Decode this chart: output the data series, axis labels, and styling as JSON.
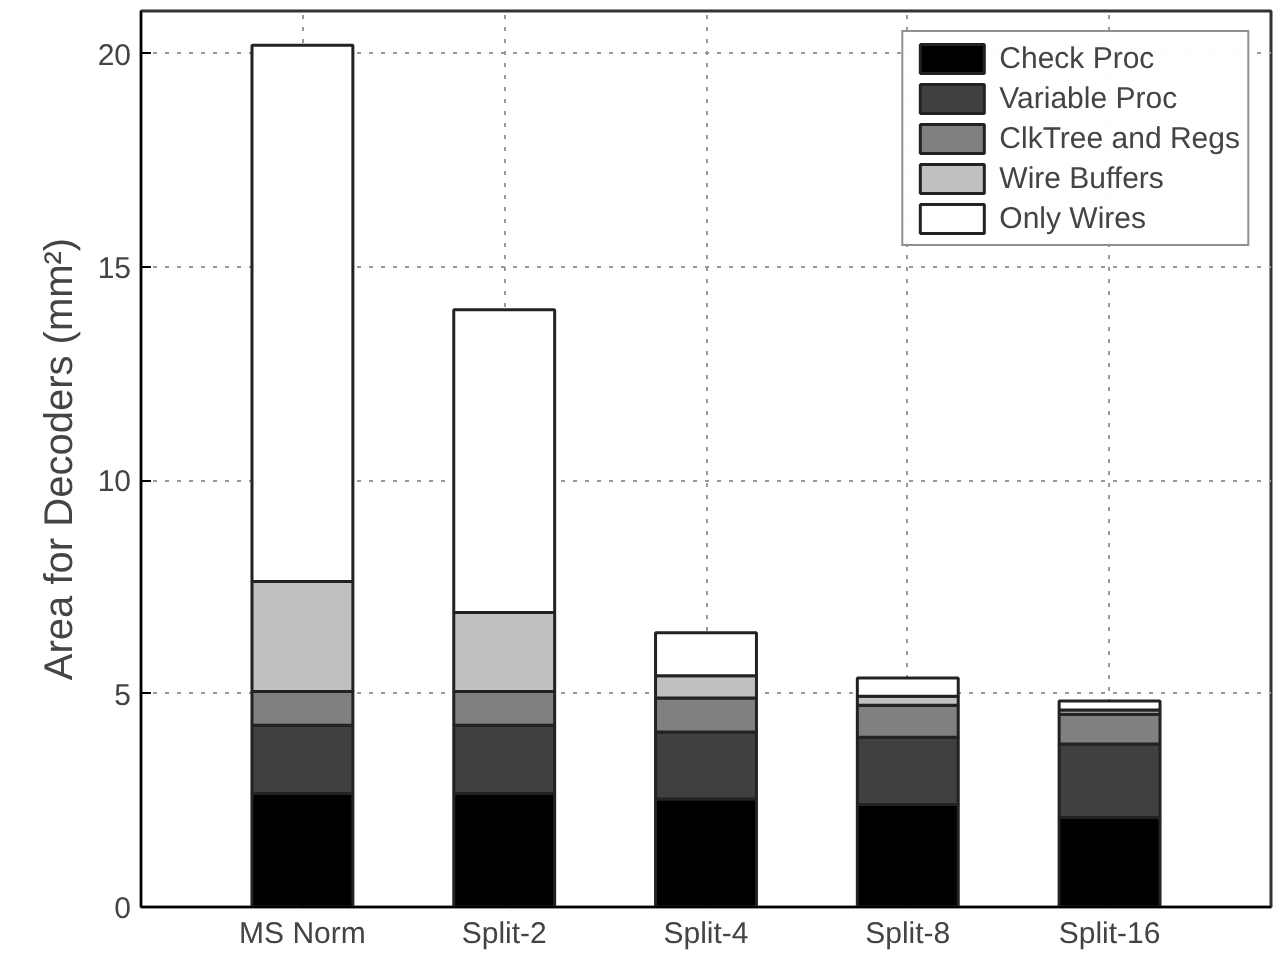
{
  "chart_data": {
    "type": "bar",
    "stacked": true,
    "ylabel": "Area for Decoders (mm²)",
    "categories": [
      "MS Norm",
      "Split-2",
      "Split-4",
      "Split-8",
      "Split-16"
    ],
    "series": [
      {
        "name": "Check Proc",
        "color": "#000000",
        "values": [
          2.66,
          2.66,
          2.53,
          2.4,
          2.1
        ]
      },
      {
        "name": "Variable Proc",
        "color": "#404040",
        "values": [
          1.6,
          1.6,
          1.57,
          1.58,
          1.72
        ]
      },
      {
        "name": "ClkTree and Regs",
        "color": "#808080",
        "values": [
          0.79,
          0.79,
          0.8,
          0.75,
          0.7
        ]
      },
      {
        "name": "Wire Buffers",
        "color": "#c0c0c0",
        "values": [
          2.58,
          1.85,
          0.52,
          0.21,
          0.1
        ]
      },
      {
        "name": "Only Wires",
        "color": "#ffffff",
        "values": [
          12.57,
          7.1,
          1.01,
          0.43,
          0.21
        ]
      }
    ],
    "ylim": [
      0,
      21
    ],
    "yticks": [
      0,
      5,
      10,
      15,
      20
    ],
    "grid": true,
    "legend": "top right"
  }
}
